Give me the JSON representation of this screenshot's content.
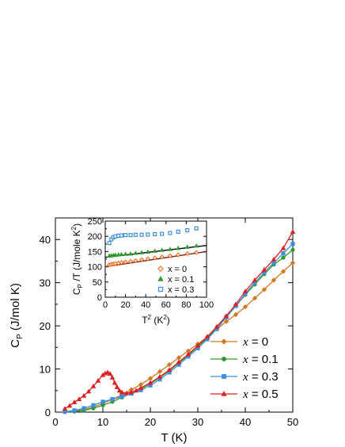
{
  "chart_data": [
    {
      "type": "line",
      "id": "main",
      "xlabel": "T (K)",
      "ylabel_parts": {
        "base": "C",
        "sub": "P",
        "rest": " (J/mol K)"
      },
      "xlim": [
        0,
        50
      ],
      "ylim": [
        0,
        45
      ],
      "xticks": [
        0,
        10,
        20,
        30,
        40,
        50
      ],
      "yticks": [
        0,
        10,
        20,
        30,
        40
      ],
      "grid": false,
      "legend": "bottom-right",
      "series": [
        {
          "name": "x = 0",
          "var": "x",
          "suffix": " = 0",
          "color": "#d2781f",
          "marker": "diamond",
          "x": [
            2,
            4,
            6,
            8,
            10,
            12,
            14,
            16,
            18,
            20,
            22,
            24,
            26,
            28,
            30,
            32,
            34,
            36,
            38,
            40,
            42,
            44,
            46,
            48,
            50
          ],
          "y": [
            0.05,
            0.2,
            0.6,
            1.2,
            2.0,
            3.0,
            4.0,
            5.2,
            6.4,
            7.8,
            9.4,
            11.0,
            12.6,
            14.2,
            15.8,
            17.4,
            19.2,
            21.0,
            22.6,
            24.4,
            26.4,
            28.4,
            30.6,
            32.6,
            34.6
          ]
        },
        {
          "name": "x = 0.1",
          "var": "x",
          "suffix": " = 0.1",
          "color": "#2f9a2f",
          "marker": "circle",
          "x": [
            2,
            4,
            6,
            8,
            10,
            12,
            14,
            16,
            18,
            20,
            22,
            24,
            26,
            28,
            30,
            32,
            34,
            36,
            38,
            40,
            42,
            44,
            46,
            48,
            50
          ],
          "y": [
            0.05,
            0.15,
            0.4,
            0.9,
            1.6,
            2.4,
            3.4,
            4.4,
            5.4,
            6.6,
            8.0,
            9.6,
            11.4,
            13.2,
            15.2,
            17.2,
            19.6,
            22.0,
            24.6,
            27.2,
            29.6,
            32.0,
            34.2,
            35.8,
            37.6
          ]
        },
        {
          "name": "x = 0.3",
          "var": "x",
          "suffix": " = 0.3",
          "color": "#3c8fe0",
          "marker": "square",
          "x": [
            2,
            4,
            6,
            8,
            10,
            12,
            14,
            16,
            18,
            20,
            22,
            24,
            26,
            28,
            30,
            32,
            34,
            36,
            38,
            40,
            42,
            44,
            46,
            48,
            50
          ],
          "y": [
            0.1,
            0.4,
            0.9,
            1.6,
            2.4,
            3.0,
            3.6,
            4.3,
            5.1,
            6.2,
            7.6,
            9.2,
            11.0,
            12.9,
            14.8,
            16.9,
            19.3,
            22.0,
            24.6,
            27.4,
            30.0,
            32.4,
            34.6,
            36.8,
            39.0
          ]
        },
        {
          "name": "x = 0.5",
          "var": "x",
          "suffix": " = 0.5",
          "color": "#e02020",
          "marker": "triangle",
          "x": [
            2,
            3,
            4,
            5,
            6,
            7,
            8,
            9,
            10,
            10.5,
            11,
            11.5,
            12,
            12.5,
            13,
            13.5,
            14,
            15,
            16,
            17,
            18,
            20,
            22,
            24,
            26,
            28,
            30,
            32,
            34,
            36,
            38,
            40,
            42,
            44,
            46,
            48,
            50
          ],
          "y": [
            0.8,
            1.5,
            2.3,
            3.0,
            3.8,
            4.8,
            6.0,
            7.3,
            8.6,
            9.0,
            9.2,
            8.9,
            8.0,
            6.8,
            5.8,
            5.0,
            4.6,
            4.4,
            4.6,
            5.0,
            5.6,
            6.8,
            8.2,
            9.8,
            11.6,
            13.4,
            15.4,
            17.5,
            19.8,
            22.3,
            25.0,
            28.0,
            30.6,
            33.0,
            35.4,
            38.0,
            41.8
          ]
        }
      ]
    },
    {
      "type": "scatter",
      "id": "inset",
      "xlabel_parts": {
        "base": "T",
        "sup": "2",
        "rest": " (K",
        "sup2": "2",
        "end": ")"
      },
      "ylabel_parts": {
        "base": "C",
        "sub": "P",
        "rest": " /T (J/mole K",
        "sup": "2",
        "end": ")"
      },
      "xlim": [
        0,
        100
      ],
      "ylim": [
        0,
        250
      ],
      "xticks": [
        0,
        20,
        40,
        60,
        80,
        100
      ],
      "yticks": [
        0,
        50,
        100,
        150,
        200,
        250
      ],
      "grid": false,
      "legend": "bottom-right",
      "series": [
        {
          "name": "x = 0",
          "color": "#e8732a",
          "marker": "diamond-open",
          "x": [
            4,
            6,
            8,
            10,
            13,
            16,
            20,
            25,
            30,
            36,
            42,
            49,
            56,
            64,
            72,
            81,
            90
          ],
          "y": [
            106,
            108,
            109,
            110,
            112,
            114,
            116,
            118,
            120,
            123,
            126,
            129,
            132,
            136,
            139,
            143,
            147
          ],
          "fit": {
            "x": [
              0,
              100
            ],
            "y": [
              100,
              150
            ],
            "color": "#7a1a10"
          }
        },
        {
          "name": "x = 0.1",
          "color": "#2f9a2f",
          "marker": "triangle",
          "x": [
            4,
            6,
            8,
            10,
            13,
            16,
            20,
            25,
            30,
            36,
            42,
            49,
            56,
            64,
            72,
            81,
            90
          ],
          "y": [
            136,
            137,
            138,
            139,
            140,
            141,
            142,
            143,
            145,
            147,
            149,
            152,
            155,
            158,
            161,
            165,
            169
          ],
          "fit": {
            "x": [
              0,
              100
            ],
            "y": [
              131,
              170
            ],
            "color": "#000000"
          }
        },
        {
          "name": "x = 0.3",
          "color": "#3c8fe0",
          "marker": "square-open",
          "x": [
            4,
            6,
            8,
            10,
            13,
            16,
            20,
            25,
            30,
            36,
            42,
            49,
            56,
            64,
            72,
            81,
            90
          ],
          "y": [
            178,
            190,
            197,
            200,
            202,
            203,
            204,
            204,
            205,
            205,
            206,
            207,
            208,
            211,
            215,
            220,
            226
          ]
        }
      ]
    }
  ]
}
